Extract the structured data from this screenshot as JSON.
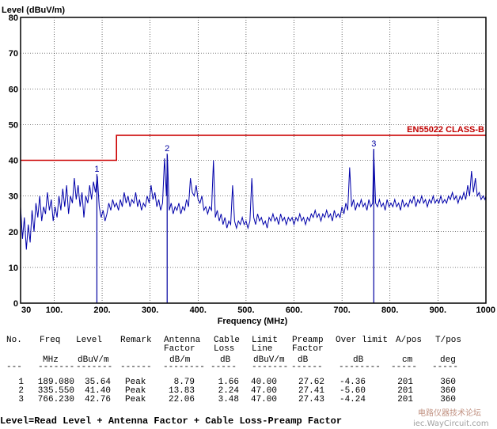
{
  "chart_data": {
    "type": "line",
    "ylabel": "Level (dBuV/m)",
    "xlabel": "Frequency (MHz)",
    "xlim": [
      30,
      1000
    ],
    "ylim": [
      0,
      80
    ],
    "y_ticks": [
      0,
      10,
      20,
      30,
      40,
      50,
      60,
      70,
      80
    ],
    "x_ticks": [
      {
        "v": 30,
        "label": "30"
      },
      {
        "v": 100,
        "label": "100."
      },
      {
        "v": 200,
        "label": "200."
      },
      {
        "v": 300,
        "label": "300."
      },
      {
        "v": 400,
        "label": "400."
      },
      {
        "v": 500,
        "label": "500."
      },
      {
        "v": 600,
        "label": "600."
      },
      {
        "v": 700,
        "label": "700."
      },
      {
        "v": 800,
        "label": "800."
      },
      {
        "v": 900,
        "label": "900."
      },
      {
        "v": 1000,
        "label": "1000"
      }
    ],
    "grid": true,
    "limit_line": {
      "name": "EN55022 CLASS-B",
      "color": "#cc0000",
      "points": [
        [
          30,
          40
        ],
        [
          230,
          40
        ],
        [
          230,
          47
        ],
        [
          1000,
          47
        ]
      ]
    },
    "series": [
      {
        "color": "#0000aa",
        "points": [
          [
            30,
            27
          ],
          [
            34,
            18
          ],
          [
            38,
            24
          ],
          [
            42,
            15
          ],
          [
            46,
            22
          ],
          [
            50,
            17
          ],
          [
            54,
            26
          ],
          [
            58,
            20
          ],
          [
            62,
            28
          ],
          [
            66,
            24
          ],
          [
            70,
            30
          ],
          [
            74,
            23
          ],
          [
            78,
            27
          ],
          [
            82,
            25
          ],
          [
            86,
            31
          ],
          [
            90,
            26
          ],
          [
            94,
            29
          ],
          [
            98,
            23
          ],
          [
            102,
            27
          ],
          [
            106,
            24
          ],
          [
            110,
            30
          ],
          [
            114,
            26
          ],
          [
            118,
            32
          ],
          [
            122,
            27
          ],
          [
            126,
            33
          ],
          [
            130,
            25
          ],
          [
            134,
            30
          ],
          [
            138,
            28
          ],
          [
            142,
            35
          ],
          [
            146,
            29
          ],
          [
            150,
            33
          ],
          [
            154,
            27
          ],
          [
            158,
            31
          ],
          [
            162,
            24
          ],
          [
            166,
            30
          ],
          [
            170,
            28
          ],
          [
            174,
            33
          ],
          [
            178,
            29
          ],
          [
            182,
            34
          ],
          [
            186,
            31
          ],
          [
            190,
            35.6
          ],
          [
            194,
            27
          ],
          [
            198,
            24
          ],
          [
            202,
            26
          ],
          [
            206,
            23
          ],
          [
            210,
            25
          ],
          [
            214,
            28
          ],
          [
            218,
            26
          ],
          [
            222,
            29
          ],
          [
            226,
            27
          ],
          [
            230,
            28
          ],
          [
            234,
            26
          ],
          [
            238,
            29
          ],
          [
            242,
            27
          ],
          [
            246,
            31
          ],
          [
            250,
            28
          ],
          [
            254,
            30
          ],
          [
            258,
            27
          ],
          [
            262,
            29
          ],
          [
            266,
            28
          ],
          [
            270,
            31
          ],
          [
            274,
            27
          ],
          [
            278,
            29
          ],
          [
            282,
            26
          ],
          [
            286,
            28
          ],
          [
            290,
            27
          ],
          [
            294,
            30
          ],
          [
            298,
            28
          ],
          [
            302,
            33
          ],
          [
            306,
            29
          ],
          [
            310,
            31
          ],
          [
            314,
            27
          ],
          [
            318,
            29
          ],
          [
            322,
            26
          ],
          [
            326,
            28
          ],
          [
            330,
            40.5
          ],
          [
            334,
            30
          ],
          [
            336,
            41.4
          ],
          [
            340,
            26
          ],
          [
            344,
            28
          ],
          [
            348,
            25
          ],
          [
            352,
            27
          ],
          [
            356,
            26
          ],
          [
            360,
            28
          ],
          [
            364,
            25
          ],
          [
            368,
            27
          ],
          [
            372,
            26
          ],
          [
            376,
            29
          ],
          [
            380,
            27
          ],
          [
            384,
            35
          ],
          [
            388,
            31
          ],
          [
            392,
            30
          ],
          [
            396,
            33
          ],
          [
            400,
            29
          ],
          [
            404,
            28
          ],
          [
            408,
            30
          ],
          [
            412,
            26
          ],
          [
            416,
            27
          ],
          [
            420,
            25
          ],
          [
            424,
            27
          ],
          [
            428,
            26
          ],
          [
            432,
            40
          ],
          [
            436,
            24
          ],
          [
            440,
            26
          ],
          [
            444,
            23
          ],
          [
            448,
            25
          ],
          [
            452,
            22
          ],
          [
            456,
            24
          ],
          [
            460,
            21
          ],
          [
            464,
            23
          ],
          [
            468,
            22
          ],
          [
            472,
            33
          ],
          [
            476,
            23
          ],
          [
            480,
            21
          ],
          [
            484,
            23
          ],
          [
            488,
            22
          ],
          [
            492,
            24
          ],
          [
            496,
            22
          ],
          [
            500,
            23
          ],
          [
            504,
            21
          ],
          [
            508,
            23
          ],
          [
            512,
            35
          ],
          [
            516,
            24
          ],
          [
            520,
            22
          ],
          [
            524,
            25
          ],
          [
            528,
            23
          ],
          [
            532,
            24
          ],
          [
            536,
            22
          ],
          [
            540,
            23
          ],
          [
            544,
            21
          ],
          [
            548,
            24
          ],
          [
            552,
            23
          ],
          [
            556,
            25
          ],
          [
            560,
            23
          ],
          [
            564,
            24
          ],
          [
            568,
            22
          ],
          [
            572,
            25
          ],
          [
            576,
            23
          ],
          [
            580,
            24
          ],
          [
            584,
            22
          ],
          [
            588,
            24
          ],
          [
            592,
            23
          ],
          [
            596,
            24
          ],
          [
            600,
            22
          ],
          [
            604,
            24
          ],
          [
            608,
            23
          ],
          [
            612,
            25
          ],
          [
            616,
            23
          ],
          [
            620,
            24
          ],
          [
            624,
            22
          ],
          [
            628,
            24
          ],
          [
            632,
            23
          ],
          [
            636,
            25
          ],
          [
            640,
            24
          ],
          [
            644,
            26
          ],
          [
            648,
            24
          ],
          [
            652,
            25
          ],
          [
            656,
            23
          ],
          [
            660,
            25
          ],
          [
            664,
            24
          ],
          [
            668,
            26
          ],
          [
            672,
            24
          ],
          [
            676,
            25
          ],
          [
            680,
            23
          ],
          [
            684,
            26
          ],
          [
            688,
            24
          ],
          [
            692,
            25
          ],
          [
            696,
            24
          ],
          [
            700,
            27
          ],
          [
            704,
            25
          ],
          [
            708,
            28
          ],
          [
            712,
            26
          ],
          [
            716,
            38
          ],
          [
            720,
            27
          ],
          [
            724,
            29
          ],
          [
            728,
            26
          ],
          [
            732,
            28
          ],
          [
            736,
            27
          ],
          [
            740,
            29
          ],
          [
            744,
            27
          ],
          [
            748,
            28
          ],
          [
            752,
            26
          ],
          [
            756,
            29
          ],
          [
            760,
            27
          ],
          [
            764,
            28
          ],
          [
            766,
            42.8
          ],
          [
            770,
            28
          ],
          [
            774,
            27
          ],
          [
            778,
            29
          ],
          [
            782,
            27
          ],
          [
            786,
            28
          ],
          [
            790,
            26
          ],
          [
            794,
            29
          ],
          [
            798,
            27
          ],
          [
            802,
            28
          ],
          [
            806,
            27
          ],
          [
            810,
            29
          ],
          [
            814,
            27
          ],
          [
            818,
            28
          ],
          [
            822,
            26
          ],
          [
            826,
            29
          ],
          [
            830,
            27
          ],
          [
            834,
            28
          ],
          [
            838,
            27
          ],
          [
            842,
            29
          ],
          [
            846,
            28
          ],
          [
            850,
            30
          ],
          [
            854,
            27
          ],
          [
            858,
            29
          ],
          [
            862,
            28
          ],
          [
            866,
            30
          ],
          [
            870,
            28
          ],
          [
            874,
            29
          ],
          [
            878,
            27
          ],
          [
            882,
            29
          ],
          [
            886,
            28
          ],
          [
            890,
            30
          ],
          [
            894,
            28
          ],
          [
            898,
            29
          ],
          [
            902,
            28
          ],
          [
            906,
            30
          ],
          [
            910,
            28
          ],
          [
            914,
            29
          ],
          [
            918,
            28
          ],
          [
            922,
            30
          ],
          [
            926,
            29
          ],
          [
            930,
            31
          ],
          [
            934,
            29
          ],
          [
            938,
            30
          ],
          [
            942,
            28
          ],
          [
            946,
            30
          ],
          [
            950,
            29
          ],
          [
            954,
            31
          ],
          [
            958,
            29
          ],
          [
            962,
            33
          ],
          [
            966,
            30
          ],
          [
            970,
            37
          ],
          [
            974,
            31
          ],
          [
            978,
            35
          ],
          [
            982,
            30
          ],
          [
            986,
            31
          ],
          [
            990,
            29
          ],
          [
            994,
            30
          ],
          [
            998,
            29
          ],
          [
            1000,
            30
          ]
        ]
      }
    ],
    "markers": [
      {
        "label": "1",
        "freq": 189.08
      },
      {
        "label": "2",
        "freq": 335.55
      },
      {
        "label": "3",
        "freq": 766.23
      }
    ]
  },
  "table": {
    "headers_row1": [
      "No.",
      "Freq",
      "Level",
      "Remark",
      "Antenna",
      "Cable",
      "Limit",
      "Preamp",
      "Over limit",
      "A/pos",
      "T/pos"
    ],
    "headers_row2": [
      "",
      "",
      "",
      "",
      "Factor",
      "Loss",
      "Line",
      "Factor",
      "",
      "",
      ""
    ],
    "units": [
      "",
      "MHz",
      "dBuV/m",
      "",
      "dB/m",
      "dB",
      "dBuV/m",
      "dB",
      "dB",
      "cm",
      "deg"
    ],
    "dashes": [
      "---",
      "-------",
      "-------",
      "------",
      "--------",
      "-----",
      "-------",
      "------",
      "--------",
      "-----",
      "-----"
    ],
    "rows": [
      [
        "1",
        "189.080",
        "35.64",
        "Peak",
        "8.79",
        "1.66",
        "40.00",
        "27.62",
        "-4.36",
        "201",
        "360"
      ],
      [
        "2",
        "335.550",
        "41.40",
        "Peak",
        "13.83",
        "2.24",
        "47.00",
        "27.41",
        "-5.60",
        "201",
        "360"
      ],
      [
        "3",
        "766.230",
        "42.76",
        "Peak",
        "22.06",
        "3.48",
        "47.00",
        "27.43",
        "-4.24",
        "201",
        "360"
      ]
    ]
  },
  "footer": "Level=Read Level + Antenna Factor + Cable Loss-Preamp Factor",
  "watermark": {
    "line1": "电路仪器技术论坛",
    "line2": "iec.WayCircuit.com"
  },
  "colors": {
    "trace": "#0000aa",
    "limit": "#cc0000",
    "grid": "#000000",
    "marker": "#0000a0"
  }
}
